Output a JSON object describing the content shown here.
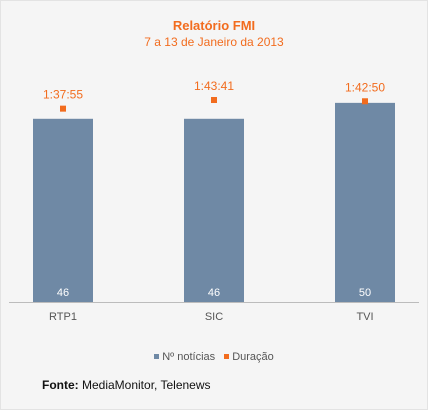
{
  "chart_data": {
    "type": "bar",
    "title": "Relatório FMI",
    "subtitle": "7 a 13 de Janeiro da 2013",
    "categories": [
      "RTP1",
      "SIC",
      "TVI"
    ],
    "series": [
      {
        "name": "Nº notícias",
        "kind": "bar",
        "values": [
          46,
          46,
          50
        ],
        "color": "#6f89a5"
      },
      {
        "name": "Duração",
        "kind": "marker",
        "values": [
          "1:37:55",
          "1:43:41",
          "1:42:50"
        ],
        "seconds": [
          5875,
          6221,
          6170
        ],
        "color": "#f26c1e"
      }
    ],
    "ylim": [
      0,
      58
    ],
    "grid": false,
    "legend_position": "bottom",
    "source_label": "Fonte:",
    "source_text": " MediaMonitor, Telenews"
  }
}
